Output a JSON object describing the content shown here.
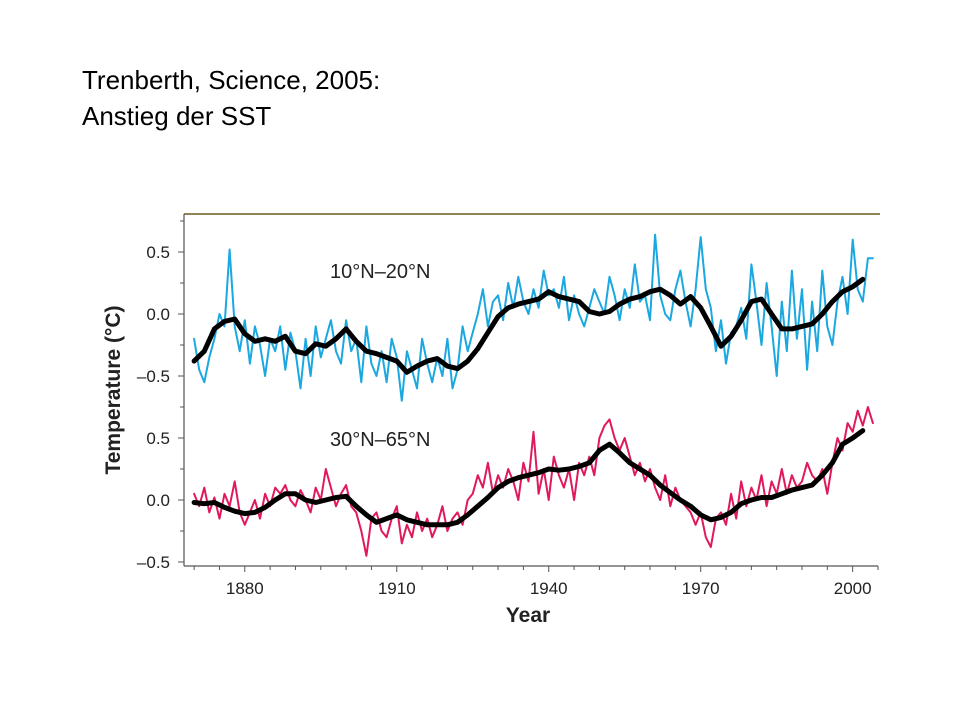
{
  "title": {
    "line1": "Trenberth, Science, 2005:",
    "line2": "Anstieg der SST"
  },
  "chart_data": {
    "type": "line",
    "xlabel": "Year",
    "ylabel": "Temperature (°C)",
    "xlim": [
      1868,
      2005
    ],
    "x_ticks": [
      1880,
      1910,
      1940,
      1970,
      2000
    ],
    "y_ticks": [
      -0.5,
      0.0,
      0.5
    ],
    "y_tick_labels": [
      "–0.5",
      "0.0",
      "0.5"
    ],
    "grid": false,
    "panels": [
      {
        "label": "10°N–20°N",
        "ylim": [
          -0.72,
          0.77
        ],
        "series": [
          {
            "kind": "annual",
            "color": "#1ba8e0",
            "x": [
              1870,
              1871,
              1872,
              1873,
              1874,
              1875,
              1876,
              1877,
              1878,
              1879,
              1880,
              1881,
              1882,
              1883,
              1884,
              1885,
              1886,
              1887,
              1888,
              1889,
              1890,
              1891,
              1892,
              1893,
              1894,
              1895,
              1896,
              1897,
              1898,
              1899,
              1900,
              1901,
              1902,
              1903,
              1904,
              1905,
              1906,
              1907,
              1908,
              1909,
              1910,
              1911,
              1912,
              1913,
              1914,
              1915,
              1916,
              1917,
              1918,
              1919,
              1920,
              1921,
              1922,
              1923,
              1924,
              1925,
              1926,
              1927,
              1928,
              1929,
              1930,
              1931,
              1932,
              1933,
              1934,
              1935,
              1936,
              1937,
              1938,
              1939,
              1940,
              1941,
              1942,
              1943,
              1944,
              1945,
              1946,
              1947,
              1948,
              1949,
              1950,
              1951,
              1952,
              1953,
              1954,
              1955,
              1956,
              1957,
              1958,
              1959,
              1960,
              1961,
              1962,
              1963,
              1964,
              1965,
              1966,
              1967,
              1968,
              1969,
              1970,
              1971,
              1972,
              1973,
              1974,
              1975,
              1976,
              1977,
              1978,
              1979,
              1980,
              1981,
              1982,
              1983,
              1984,
              1985,
              1986,
              1987,
              1988,
              1989,
              1990,
              1991,
              1992,
              1993,
              1994,
              1995,
              1996,
              1997,
              1998,
              1999,
              2000,
              2001,
              2002,
              2003,
              2004
            ],
            "values": [
              -0.2,
              -0.45,
              -0.55,
              -0.35,
              -0.2,
              0.0,
              -0.1,
              0.52,
              -0.1,
              -0.3,
              -0.05,
              -0.4,
              -0.1,
              -0.25,
              -0.5,
              -0.2,
              -0.3,
              -0.1,
              -0.45,
              -0.15,
              -0.3,
              -0.6,
              -0.2,
              -0.5,
              -0.1,
              -0.35,
              -0.2,
              -0.05,
              -0.3,
              -0.4,
              -0.05,
              -0.3,
              -0.2,
              -0.55,
              -0.1,
              -0.4,
              -0.5,
              -0.3,
              -0.55,
              -0.2,
              -0.35,
              -0.7,
              -0.3,
              -0.45,
              -0.6,
              -0.2,
              -0.4,
              -0.55,
              -0.35,
              -0.5,
              -0.2,
              -0.6,
              -0.45,
              -0.1,
              -0.3,
              -0.15,
              0.0,
              0.2,
              -0.1,
              0.1,
              0.15,
              -0.05,
              0.25,
              0.05,
              0.3,
              0.1,
              0.0,
              0.2,
              0.05,
              0.35,
              0.15,
              0.2,
              0.05,
              0.3,
              -0.05,
              0.15,
              0.0,
              -0.1,
              0.05,
              0.2,
              0.1,
              0.0,
              0.3,
              0.15,
              -0.05,
              0.2,
              0.05,
              0.4,
              0.1,
              0.15,
              -0.05,
              0.64,
              0.15,
              0.0,
              -0.05,
              0.2,
              0.35,
              0.1,
              -0.1,
              0.2,
              0.62,
              0.2,
              0.05,
              -0.3,
              -0.05,
              -0.4,
              -0.15,
              -0.1,
              0.05,
              -0.2,
              0.4,
              0.1,
              -0.25,
              0.25,
              -0.1,
              -0.5,
              0.1,
              -0.3,
              0.35,
              -0.2,
              0.2,
              -0.45,
              0.1,
              -0.3,
              0.35,
              -0.1,
              -0.25,
              0.1,
              0.3,
              0.0,
              0.6,
              0.2,
              0.1,
              0.45,
              0.45
            ]
          },
          {
            "kind": "smoothed",
            "color": "#000000",
            "x": [
              1870,
              1872,
              1874,
              1876,
              1878,
              1880,
              1882,
              1884,
              1886,
              1888,
              1890,
              1892,
              1894,
              1896,
              1898,
              1900,
              1902,
              1904,
              1906,
              1908,
              1910,
              1912,
              1914,
              1916,
              1918,
              1920,
              1922,
              1924,
              1926,
              1928,
              1930,
              1932,
              1934,
              1936,
              1938,
              1940,
              1942,
              1944,
              1946,
              1948,
              1950,
              1952,
              1954,
              1956,
              1958,
              1960,
              1962,
              1964,
              1966,
              1968,
              1970,
              1972,
              1974,
              1976,
              1978,
              1980,
              1982,
              1984,
              1986,
              1988,
              1990,
              1992,
              1994,
              1996,
              1998,
              2000,
              2002
            ],
            "values": [
              -0.38,
              -0.3,
              -0.12,
              -0.06,
              -0.04,
              -0.16,
              -0.22,
              -0.2,
              -0.22,
              -0.18,
              -0.3,
              -0.32,
              -0.24,
              -0.26,
              -0.2,
              -0.12,
              -0.22,
              -0.3,
              -0.32,
              -0.35,
              -0.38,
              -0.47,
              -0.42,
              -0.38,
              -0.36,
              -0.42,
              -0.44,
              -0.38,
              -0.28,
              -0.15,
              -0.02,
              0.05,
              0.08,
              0.1,
              0.12,
              0.18,
              0.14,
              0.12,
              0.1,
              0.02,
              0.0,
              0.02,
              0.08,
              0.12,
              0.14,
              0.18,
              0.2,
              0.15,
              0.08,
              0.14,
              0.05,
              -0.1,
              -0.26,
              -0.18,
              -0.05,
              0.1,
              0.12,
              0.0,
              -0.12,
              -0.12,
              -0.1,
              -0.08,
              0.0,
              0.1,
              0.18,
              0.22,
              0.28
            ]
          }
        ]
      },
      {
        "label": "30°N–65°N",
        "ylim": [
          -0.5,
          0.85
        ],
        "series": [
          {
            "kind": "annual",
            "color": "#e0195a",
            "x": [
              1870,
              1871,
              1872,
              1873,
              1874,
              1875,
              1876,
              1877,
              1878,
              1879,
              1880,
              1881,
              1882,
              1883,
              1884,
              1885,
              1886,
              1887,
              1888,
              1889,
              1890,
              1891,
              1892,
              1893,
              1894,
              1895,
              1896,
              1897,
              1898,
              1899,
              1900,
              1901,
              1902,
              1903,
              1904,
              1905,
              1906,
              1907,
              1908,
              1909,
              1910,
              1911,
              1912,
              1913,
              1914,
              1915,
              1916,
              1917,
              1918,
              1919,
              1920,
              1921,
              1922,
              1923,
              1924,
              1925,
              1926,
              1927,
              1928,
              1929,
              1930,
              1931,
              1932,
              1933,
              1934,
              1935,
              1936,
              1937,
              1938,
              1939,
              1940,
              1941,
              1942,
              1943,
              1944,
              1945,
              1946,
              1947,
              1948,
              1949,
              1950,
              1951,
              1952,
              1953,
              1954,
              1955,
              1956,
              1957,
              1958,
              1959,
              1960,
              1961,
              1962,
              1963,
              1964,
              1965,
              1966,
              1967,
              1968,
              1969,
              1970,
              1971,
              1972,
              1973,
              1974,
              1975,
              1976,
              1977,
              1978,
              1979,
              1980,
              1981,
              1982,
              1983,
              1984,
              1985,
              1986,
              1987,
              1988,
              1989,
              1990,
              1991,
              1992,
              1993,
              1994,
              1995,
              1996,
              1997,
              1998,
              1999,
              2000,
              2001,
              2002,
              2003,
              2004
            ],
            "values": [
              0.05,
              -0.05,
              0.1,
              -0.1,
              0.02,
              -0.15,
              0.05,
              -0.05,
              0.15,
              -0.1,
              -0.2,
              -0.1,
              0.0,
              -0.15,
              0.05,
              -0.05,
              0.1,
              0.05,
              0.12,
              0.0,
              -0.05,
              0.08,
              0.0,
              -0.1,
              0.1,
              0.0,
              0.25,
              0.1,
              -0.05,
              0.05,
              0.12,
              -0.05,
              -0.1,
              -0.25,
              -0.45,
              -0.15,
              -0.1,
              -0.25,
              -0.3,
              -0.15,
              -0.05,
              -0.35,
              -0.2,
              -0.3,
              -0.1,
              -0.25,
              -0.15,
              -0.3,
              -0.2,
              -0.05,
              -0.25,
              -0.15,
              -0.1,
              -0.2,
              0.0,
              0.05,
              0.2,
              0.1,
              0.3,
              0.05,
              0.2,
              0.1,
              0.25,
              0.15,
              0.0,
              0.3,
              0.15,
              0.55,
              0.05,
              0.25,
              0.0,
              0.35,
              0.2,
              0.1,
              0.25,
              0.0,
              0.3,
              0.2,
              0.35,
              0.2,
              0.5,
              0.6,
              0.65,
              0.5,
              0.4,
              0.5,
              0.35,
              0.2,
              0.3,
              0.15,
              0.25,
              0.1,
              0.0,
              0.2,
              -0.05,
              0.1,
              0.0,
              -0.05,
              -0.1,
              -0.2,
              -0.1,
              -0.3,
              -0.38,
              -0.15,
              -0.1,
              -0.2,
              0.05,
              -0.15,
              0.15,
              -0.05,
              0.1,
              0.0,
              0.2,
              -0.05,
              0.15,
              0.05,
              0.25,
              0.05,
              0.2,
              0.1,
              0.15,
              0.3,
              0.2,
              0.15,
              0.25,
              0.05,
              0.3,
              0.5,
              0.4,
              0.62,
              0.55,
              0.72,
              0.6,
              0.75,
              0.62
            ]
          },
          {
            "kind": "smoothed",
            "color": "#000000",
            "x": [
              1870,
              1872,
              1874,
              1876,
              1878,
              1880,
              1882,
              1884,
              1886,
              1888,
              1890,
              1892,
              1894,
              1896,
              1898,
              1900,
              1902,
              1904,
              1906,
              1908,
              1910,
              1912,
              1914,
              1916,
              1918,
              1920,
              1922,
              1924,
              1926,
              1928,
              1930,
              1932,
              1934,
              1936,
              1938,
              1940,
              1942,
              1944,
              1946,
              1948,
              1950,
              1952,
              1954,
              1956,
              1958,
              1960,
              1962,
              1964,
              1966,
              1968,
              1970,
              1972,
              1974,
              1976,
              1978,
              1980,
              1982,
              1984,
              1986,
              1988,
              1990,
              1992,
              1994,
              1996,
              1998,
              2000,
              2002
            ],
            "values": [
              -0.02,
              -0.03,
              -0.02,
              -0.06,
              -0.09,
              -0.11,
              -0.1,
              -0.06,
              0.0,
              0.05,
              0.05,
              0.0,
              -0.02,
              0.0,
              0.02,
              0.03,
              -0.05,
              -0.12,
              -0.18,
              -0.15,
              -0.12,
              -0.16,
              -0.18,
              -0.2,
              -0.2,
              -0.2,
              -0.18,
              -0.12,
              -0.05,
              0.02,
              0.1,
              0.15,
              0.18,
              0.2,
              0.22,
              0.25,
              0.24,
              0.25,
              0.27,
              0.3,
              0.4,
              0.45,
              0.38,
              0.3,
              0.25,
              0.2,
              0.12,
              0.06,
              0.0,
              -0.05,
              -0.12,
              -0.16,
              -0.14,
              -0.1,
              -0.03,
              0.0,
              0.02,
              0.02,
              0.05,
              0.08,
              0.1,
              0.12,
              0.2,
              0.3,
              0.45,
              0.5,
              0.56
            ]
          }
        ]
      }
    ]
  },
  "colors": {
    "panel1_annual": "#1ba8e0",
    "panel2_annual": "#e0195a",
    "smoothed": "#000000",
    "axis": "#555555",
    "top_border": "#6b5a1e"
  }
}
